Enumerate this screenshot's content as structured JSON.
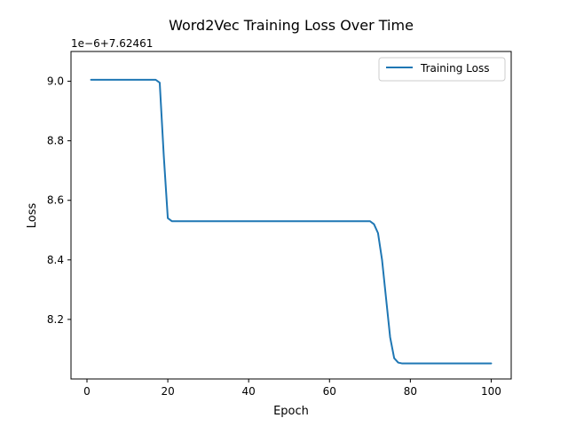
{
  "chart_data": {
    "type": "line",
    "title": "Word2Vec Training Loss Over Time",
    "xlabel": "Epoch",
    "ylabel": "Loss",
    "offset_text": "1e−6+7.62461",
    "xlim": [
      -3.95,
      104.95
    ],
    "ylim": [
      8.0,
      9.1
    ],
    "x_ticks": [
      0,
      20,
      40,
      60,
      80,
      100
    ],
    "y_ticks": [
      8.2,
      8.4,
      8.6,
      8.8,
      9.0
    ],
    "y_tick_labels": [
      "8.2",
      "8.4",
      "8.6",
      "8.8",
      "9.0"
    ],
    "grid": false,
    "legend_position": "upper right",
    "series": [
      {
        "name": "Training Loss",
        "color": "#1f77b4",
        "x": [
          1,
          2,
          3,
          4,
          5,
          6,
          7,
          8,
          9,
          10,
          11,
          12,
          13,
          14,
          15,
          16,
          17,
          18,
          19,
          20,
          21,
          22,
          23,
          24,
          25,
          26,
          27,
          28,
          29,
          30,
          31,
          32,
          33,
          34,
          35,
          36,
          37,
          38,
          39,
          40,
          41,
          42,
          43,
          44,
          45,
          46,
          47,
          48,
          49,
          50,
          51,
          52,
          53,
          54,
          55,
          56,
          57,
          58,
          59,
          60,
          61,
          62,
          63,
          64,
          65,
          66,
          67,
          68,
          69,
          70,
          71,
          72,
          73,
          74,
          75,
          76,
          77,
          78,
          79,
          80,
          81,
          82,
          83,
          84,
          85,
          86,
          87,
          88,
          89,
          90,
          91,
          92,
          93,
          94,
          95,
          96,
          97,
          98,
          99,
          100
        ],
        "y": [
          9.005,
          9.005,
          9.005,
          9.005,
          9.005,
          9.005,
          9.005,
          9.005,
          9.005,
          9.005,
          9.005,
          9.005,
          9.005,
          9.005,
          9.005,
          9.005,
          9.005,
          8.995,
          8.75,
          8.54,
          8.53,
          8.53,
          8.53,
          8.53,
          8.53,
          8.53,
          8.53,
          8.53,
          8.53,
          8.53,
          8.53,
          8.53,
          8.53,
          8.53,
          8.53,
          8.53,
          8.53,
          8.53,
          8.53,
          8.53,
          8.53,
          8.53,
          8.53,
          8.53,
          8.53,
          8.53,
          8.53,
          8.53,
          8.53,
          8.53,
          8.53,
          8.53,
          8.53,
          8.53,
          8.53,
          8.53,
          8.53,
          8.53,
          8.53,
          8.53,
          8.53,
          8.53,
          8.53,
          8.53,
          8.53,
          8.53,
          8.53,
          8.53,
          8.53,
          8.53,
          8.52,
          8.49,
          8.4,
          8.27,
          8.14,
          8.07,
          8.055,
          8.052,
          8.052,
          8.052,
          8.052,
          8.052,
          8.052,
          8.052,
          8.052,
          8.052,
          8.052,
          8.052,
          8.052,
          8.052,
          8.052,
          8.052,
          8.052,
          8.052,
          8.052,
          8.052,
          8.052,
          8.052,
          8.052,
          8.052
        ]
      }
    ]
  }
}
